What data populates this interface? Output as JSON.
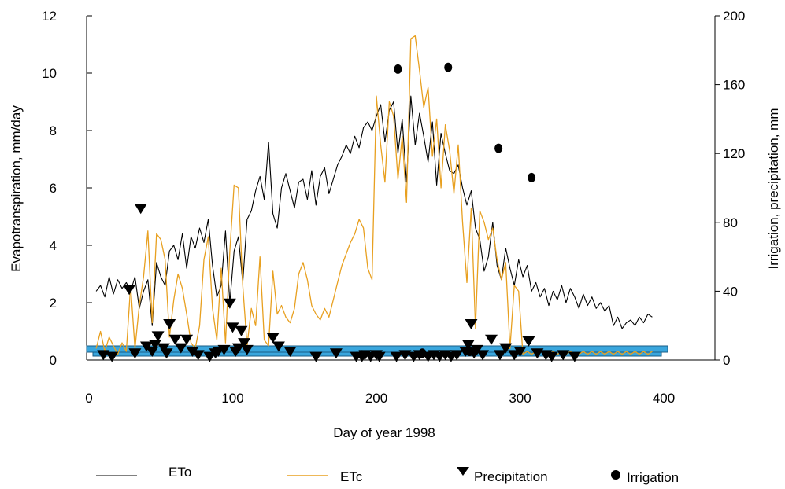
{
  "chart_data": {
    "type": "line",
    "title": "",
    "xlabel": "Day of year 1998",
    "ylabel": "Evapotranspiration, mm/day",
    "ylabel_right": "Irrigation, precipitation, mm",
    "xlim": [
      0,
      400
    ],
    "ylim": [
      0,
      12
    ],
    "ylim_right": [
      0,
      200
    ],
    "x_ticks": [
      "0",
      "100",
      "200",
      "300",
      "400"
    ],
    "y_ticks": [
      "0",
      "2",
      "4",
      "6",
      "8",
      "10",
      "12"
    ],
    "y_ticks_right": [
      "0",
      "40",
      "80",
      "120",
      "160",
      "200"
    ],
    "grid": false,
    "legend_position": "bottom",
    "colors": {
      "ETo": "#000000",
      "ETc": "#E8A020",
      "Precipitation": "#000000",
      "Irrigation": "#000000",
      "band_fill": "#3AA6DD",
      "band_stroke": "#1a5d86"
    },
    "series": [
      {
        "name": "ETo",
        "type": "line",
        "axis": "left",
        "x": [
          5,
          8,
          11,
          14,
          17,
          20,
          23,
          26,
          29,
          32,
          35,
          38,
          41,
          44,
          47,
          50,
          53,
          56,
          59,
          62,
          65,
          68,
          71,
          74,
          77,
          80,
          83,
          86,
          89,
          92,
          95,
          98,
          101,
          104,
          107,
          110,
          113,
          116,
          119,
          122,
          125,
          128,
          131,
          134,
          137,
          140,
          143,
          146,
          149,
          152,
          155,
          158,
          161,
          164,
          167,
          170,
          173,
          176,
          179,
          182,
          185,
          188,
          191,
          194,
          197,
          200,
          203,
          206,
          209,
          212,
          215,
          218,
          221,
          224,
          227,
          230,
          233,
          236,
          239,
          242,
          245,
          248,
          251,
          254,
          257,
          260,
          263,
          266,
          269,
          272,
          275,
          278,
          281,
          284,
          287,
          290,
          293,
          296,
          299,
          302,
          305,
          308,
          311,
          314,
          317,
          320,
          323,
          326,
          329,
          332,
          335,
          338,
          341,
          344,
          347,
          350,
          353,
          356,
          359,
          362,
          365,
          368,
          371,
          374,
          377,
          380,
          383,
          386,
          389,
          392
        ],
        "y": [
          2.4,
          2.6,
          2.2,
          2.9,
          2.3,
          2.8,
          2.5,
          2.7,
          2.4,
          2.9,
          1.8,
          2.4,
          2.8,
          1.2,
          3.4,
          2.9,
          2.6,
          3.8,
          4.0,
          3.5,
          4.4,
          3.2,
          4.3,
          3.9,
          4.6,
          4.1,
          4.9,
          3.3,
          2.2,
          2.6,
          4.5,
          2.0,
          3.8,
          4.3,
          2.7,
          4.9,
          5.2,
          5.9,
          6.4,
          5.6,
          7.6,
          5.1,
          4.6,
          6.0,
          6.5,
          5.9,
          5.3,
          6.2,
          6.3,
          5.6,
          6.6,
          5.4,
          6.4,
          6.7,
          5.8,
          6.3,
          6.8,
          7.1,
          7.5,
          7.2,
          7.8,
          7.4,
          8.1,
          8.3,
          8.0,
          8.5,
          8.9,
          7.6,
          8.7,
          9.0,
          7.2,
          8.4,
          6.2,
          9.2,
          7.5,
          8.6,
          7.8,
          6.9,
          8.3,
          6.1,
          7.9,
          7.2,
          6.6,
          6.5,
          6.8,
          6.0,
          5.4,
          5.9,
          4.6,
          4.2,
          3.1,
          3.6,
          4.8,
          3.3,
          2.8,
          3.9,
          3.2,
          2.6,
          3.5,
          2.9,
          3.3,
          2.4,
          2.7,
          2.2,
          2.5,
          1.9,
          2.4,
          2.1,
          2.6,
          2.0,
          2.5,
          2.2,
          1.8,
          2.3,
          1.9,
          2.2,
          1.8,
          2.0,
          1.7,
          1.9,
          1.2,
          1.5,
          1.1,
          1.3,
          1.4,
          1.2,
          1.5,
          1.3,
          1.6,
          1.5
        ]
      },
      {
        "name": "ETc",
        "type": "line",
        "axis": "left",
        "x": [
          5,
          8,
          11,
          14,
          17,
          20,
          23,
          26,
          29,
          32,
          35,
          38,
          41,
          44,
          47,
          50,
          53,
          56,
          59,
          62,
          65,
          68,
          71,
          74,
          77,
          80,
          83,
          86,
          89,
          92,
          95,
          98,
          101,
          104,
          107,
          110,
          113,
          116,
          119,
          122,
          125,
          128,
          131,
          134,
          137,
          140,
          143,
          146,
          149,
          152,
          155,
          158,
          161,
          164,
          167,
          170,
          173,
          176,
          179,
          182,
          185,
          188,
          191,
          194,
          197,
          200,
          203,
          206,
          209,
          212,
          215,
          218,
          221,
          224,
          227,
          230,
          233,
          236,
          239,
          242,
          245,
          248,
          251,
          254,
          257,
          260,
          263,
          266,
          269,
          272,
          275,
          278,
          281,
          284,
          287,
          290,
          293,
          296,
          299,
          302,
          305,
          308,
          311,
          314,
          317,
          320,
          323,
          326,
          329,
          332,
          335,
          338,
          341,
          344,
          347,
          350,
          353,
          356,
          359,
          362,
          365,
          368,
          371,
          374,
          377,
          380,
          383,
          386,
          389,
          392
        ],
        "y": [
          0.4,
          1.0,
          0.3,
          0.8,
          0.5,
          0.2,
          0.6,
          0.3,
          2.6,
          0.4,
          1.9,
          2.9,
          4.5,
          1.3,
          4.4,
          4.2,
          3.5,
          0.8,
          2.1,
          3.0,
          2.5,
          1.6,
          0.6,
          0.4,
          1.2,
          3.5,
          4.3,
          1.8,
          0.7,
          3.2,
          0.6,
          3.8,
          6.1,
          6.0,
          2.6,
          0.5,
          1.8,
          1.2,
          3.6,
          0.7,
          0.5,
          3.1,
          1.6,
          1.9,
          1.5,
          1.3,
          1.8,
          3.0,
          3.4,
          2.8,
          1.9,
          1.6,
          1.4,
          1.8,
          1.5,
          2.1,
          2.7,
          3.3,
          3.7,
          4.1,
          4.4,
          4.9,
          4.6,
          3.2,
          2.8,
          9.2,
          7.5,
          6.2,
          9.0,
          8.5,
          6.3,
          7.8,
          5.5,
          11.2,
          11.3,
          10.1,
          8.8,
          9.5,
          7.1,
          8.4,
          6.0,
          8.2,
          7.3,
          5.8,
          7.5,
          4.8,
          2.7,
          5.3,
          1.1,
          5.2,
          4.8,
          4.2,
          4.6,
          3.5,
          2.8,
          3.4,
          0.4,
          2.6,
          2.4,
          0.2,
          0.3,
          0.2,
          0.3,
          0.3,
          0.3,
          0.2,
          0.3,
          0.2,
          0.3,
          0.2,
          0.3,
          0.2,
          0.2,
          0.3,
          0.2,
          0.3,
          0.2,
          0.3,
          0.2,
          0.3,
          0.2,
          0.3,
          0.2,
          0.3,
          0.2,
          0.3,
          0.2,
          0.3,
          0.2,
          0.3
        ]
      },
      {
        "name": "Precipitation",
        "type": "scatter",
        "marker": "triangle-down",
        "axis": "right",
        "x": [
          10,
          16,
          28,
          32,
          36,
          40,
          44,
          46,
          48,
          52,
          54,
          56,
          60,
          64,
          68,
          72,
          76,
          84,
          88,
          90,
          94,
          98,
          100,
          102,
          104,
          106,
          108,
          110,
          128,
          132,
          140,
          158,
          172,
          186,
          190,
          192,
          196,
          200,
          202,
          214,
          220,
          226,
          230,
          236,
          240,
          244,
          248,
          252,
          256,
          262,
          264,
          266,
          268,
          270,
          274,
          280,
          286,
          290,
          296,
          300,
          306,
          312,
          318,
          322,
          330,
          338
        ],
        "y": [
          3,
          2,
          41,
          4,
          88,
          8,
          5,
          9,
          14,
          7,
          4,
          21,
          12,
          7,
          12,
          5,
          3,
          2,
          4,
          5,
          6,
          33,
          19,
          5,
          7,
          17,
          10,
          6,
          13,
          8,
          5,
          2,
          4,
          2,
          2,
          3,
          2,
          3,
          2,
          2,
          3,
          2,
          3,
          2,
          3,
          2,
          3,
          2,
          3,
          5,
          9,
          21,
          4,
          6,
          3,
          12,
          3,
          7,
          3,
          5,
          11,
          4,
          3,
          2,
          3,
          2
        ]
      },
      {
        "name": "Irrigation",
        "type": "scatter",
        "marker": "circle",
        "axis": "right",
        "x": [
          190,
          215,
          232,
          250,
          265,
          285,
          308
        ],
        "y": [
          3,
          169,
          4,
          170,
          5,
          123,
          106
        ]
      }
    ]
  },
  "legend": [
    {
      "label": "ETo",
      "symbol": "line-black"
    },
    {
      "label": "ETc",
      "symbol": "line-orange"
    },
    {
      "label": "Precipitation",
      "symbol": "triangle-down"
    },
    {
      "label": "Irrigation",
      "symbol": "circle"
    }
  ]
}
